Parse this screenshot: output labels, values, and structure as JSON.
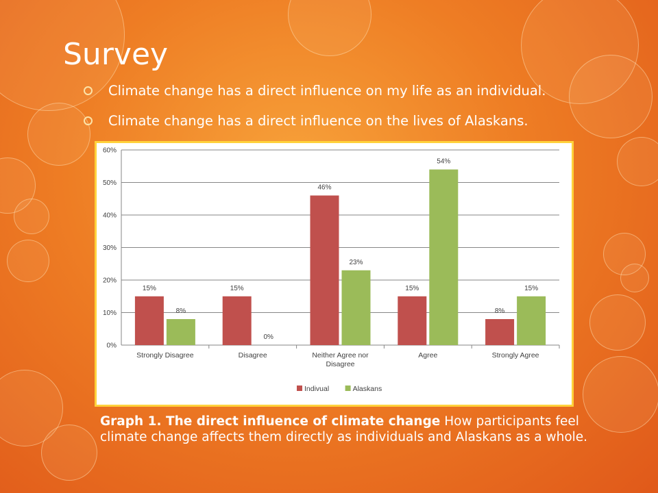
{
  "slide": {
    "title": "Survey",
    "bullets": [
      "Climate change has a direct influence on my life as an individual.",
      "Climate change has a direct influence on the lives of Alaskans."
    ],
    "caption_bold": "Graph 1. The direct influence of climate change",
    "caption_text": " How participants feel climate change affects them directly as individuals and Alaskans as a whole."
  },
  "colors": {
    "accent_orange": "#ee7d24",
    "frame_yellow": "#ffd23c",
    "series_individual": "#c0504d",
    "series_alaskans": "#9bbb59"
  },
  "chart_data": {
    "type": "bar",
    "categories": [
      "Strongly Disagree",
      "Disagree",
      "Neither Agree nor Disagree",
      "Agree",
      "Strongly Agree"
    ],
    "series": [
      {
        "name": "Indivual",
        "values": [
          15,
          15,
          46,
          15,
          8
        ],
        "labels": [
          "15%",
          "15%",
          "46%",
          "15%",
          "8%"
        ]
      },
      {
        "name": "Alaskans",
        "values": [
          8,
          0,
          23,
          54,
          15
        ],
        "labels": [
          "8%",
          "0%",
          "23%",
          "54%",
          "15%"
        ]
      }
    ],
    "ylim": [
      0,
      60
    ],
    "yticks": [
      "0%",
      "10%",
      "20%",
      "30%",
      "40%",
      "50%",
      "60%"
    ],
    "title": "",
    "xlabel": "",
    "ylabel": "",
    "grid": true,
    "legend_position": "bottom"
  }
}
